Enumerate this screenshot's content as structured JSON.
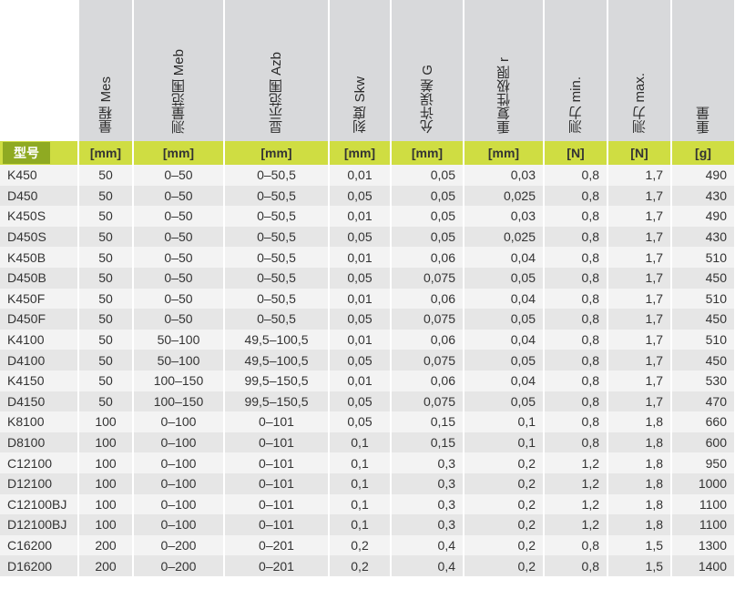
{
  "headers": [
    "量程 Mes",
    "测量范围 Meb",
    "显示范围 Azb",
    "刻度 Skw",
    "允许误差 G",
    "重复性极限 r",
    "测力 min.",
    "测力 max.",
    "重量"
  ],
  "type_label": "型号",
  "units": [
    "[mm]",
    "[mm]",
    "[mm]",
    "[mm]",
    "[mm]",
    "[mm]",
    "[N]",
    "[N]",
    "[g]"
  ],
  "rows": [
    [
      "K450",
      "50",
      "0–50",
      "0–50,5",
      "0,01",
      "0,05",
      "0,03",
      "0,8",
      "1,7",
      "490"
    ],
    [
      "D450",
      "50",
      "0–50",
      "0–50,5",
      "0,05",
      "0,05",
      "0,025",
      "0,8",
      "1,7",
      "430"
    ],
    [
      "K450S",
      "50",
      "0–50",
      "0–50,5",
      "0,01",
      "0,05",
      "0,03",
      "0,8",
      "1,7",
      "490"
    ],
    [
      "D450S",
      "50",
      "0–50",
      "0–50,5",
      "0,05",
      "0,05",
      "0,025",
      "0,8",
      "1,7",
      "430"
    ],
    [
      "K450B",
      "50",
      "0–50",
      "0–50,5",
      "0,01",
      "0,06",
      "0,04",
      "0,8",
      "1,7",
      "510"
    ],
    [
      "D450B",
      "50",
      "0–50",
      "0–50,5",
      "0,05",
      "0,075",
      "0,05",
      "0,8",
      "1,7",
      "450"
    ],
    [
      "K450F",
      "50",
      "0–50",
      "0–50,5",
      "0,01",
      "0,06",
      "0,04",
      "0,8",
      "1,7",
      "510"
    ],
    [
      "D450F",
      "50",
      "0–50",
      "0–50,5",
      "0,05",
      "0,075",
      "0,05",
      "0,8",
      "1,7",
      "450"
    ],
    [
      "K4100",
      "50",
      "50–100",
      "49,5–100,5",
      "0,01",
      "0,06",
      "0,04",
      "0,8",
      "1,7",
      "510"
    ],
    [
      "D4100",
      "50",
      "50–100",
      "49,5–100,5",
      "0,05",
      "0,075",
      "0,05",
      "0,8",
      "1,7",
      "450"
    ],
    [
      "K4150",
      "50",
      "100–150",
      "99,5–150,5",
      "0,01",
      "0,06",
      "0,04",
      "0,8",
      "1,7",
      "530"
    ],
    [
      "D4150",
      "50",
      "100–150",
      "99,5–150,5",
      "0,05",
      "0,075",
      "0,05",
      "0,8",
      "1,7",
      "470"
    ],
    [
      "K8100",
      "100",
      "0–100",
      "0–101",
      "0,05",
      "0,15",
      "0,1",
      "0,8",
      "1,8",
      "660"
    ],
    [
      "D8100",
      "100",
      "0–100",
      "0–101",
      "0,1",
      "0,15",
      "0,1",
      "0,8",
      "1,8",
      "600"
    ],
    [
      "C12100",
      "100",
      "0–100",
      "0–101",
      "0,1",
      "0,3",
      "0,2",
      "1,2",
      "1,8",
      "950"
    ],
    [
      "D12100",
      "100",
      "0–100",
      "0–101",
      "0,1",
      "0,3",
      "0,2",
      "1,2",
      "1,8",
      "1000"
    ],
    [
      "C12100BJ",
      "100",
      "0–100",
      "0–101",
      "0,1",
      "0,3",
      "0,2",
      "1,2",
      "1,8",
      "1100"
    ],
    [
      "D12100BJ",
      "100",
      "0–100",
      "0–101",
      "0,1",
      "0,3",
      "0,2",
      "1,2",
      "1,8",
      "1100"
    ],
    [
      "C16200",
      "200",
      "0–200",
      "0–201",
      "0,2",
      "0,4",
      "0,2",
      "0,8",
      "1,5",
      "1300"
    ],
    [
      "D16200",
      "200",
      "0–200",
      "0–201",
      "0,2",
      "0,4",
      "0,2",
      "0,8",
      "1,5",
      "1400"
    ]
  ]
}
